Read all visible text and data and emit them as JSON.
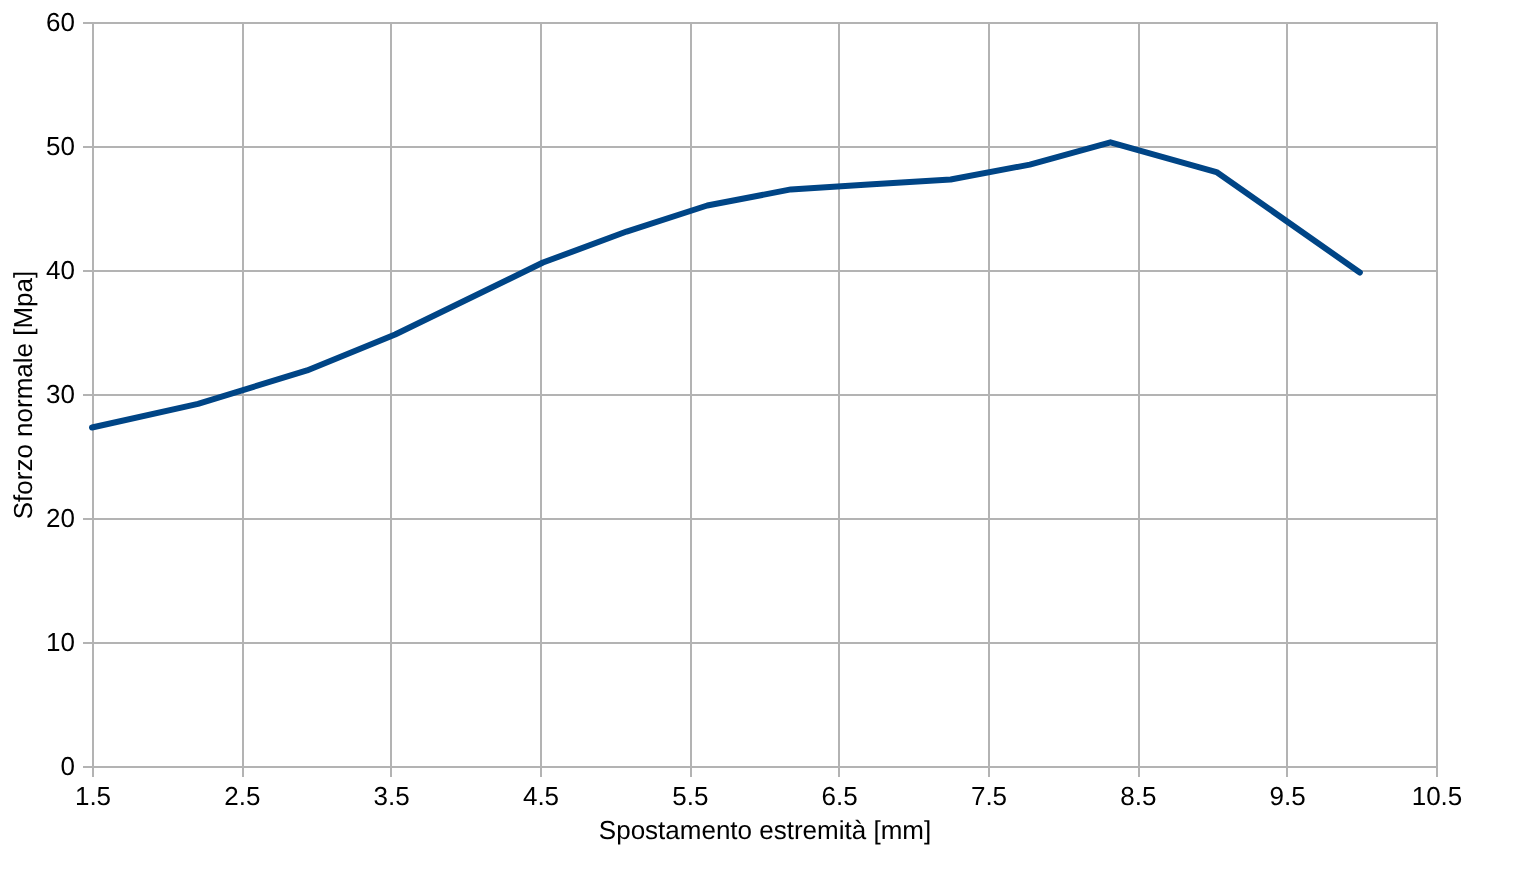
{
  "chart_data": {
    "type": "line",
    "xlabel": "Spostamento estremità [mm]",
    "ylabel": "Sforzo normale [Mpa]",
    "x": [
      1.5,
      2.21,
      2.94,
      3.53,
      4.52,
      5.08,
      5.62,
      6.18,
      6.7,
      7.25,
      7.78,
      8.32,
      9.03,
      9.99
    ],
    "series": [
      {
        "color": "#004586",
        "values": [
          27.3,
          29.2,
          31.9,
          34.8,
          40.6,
          43.1,
          45.2,
          46.5,
          46.9,
          47.3,
          48.5,
          50.3,
          47.9,
          39.8
        ]
      }
    ],
    "xlim": [
      1.5,
      10.5
    ],
    "xticks": [
      1.5,
      2.5,
      3.5,
      4.5,
      5.5,
      6.5,
      7.5,
      8.5,
      9.5,
      10.5
    ],
    "ylim": [
      0,
      60
    ],
    "yticks": [
      0,
      10,
      20,
      30,
      40,
      50,
      60
    ],
    "grid": true,
    "marker": "none",
    "line_style": "solid"
  }
}
